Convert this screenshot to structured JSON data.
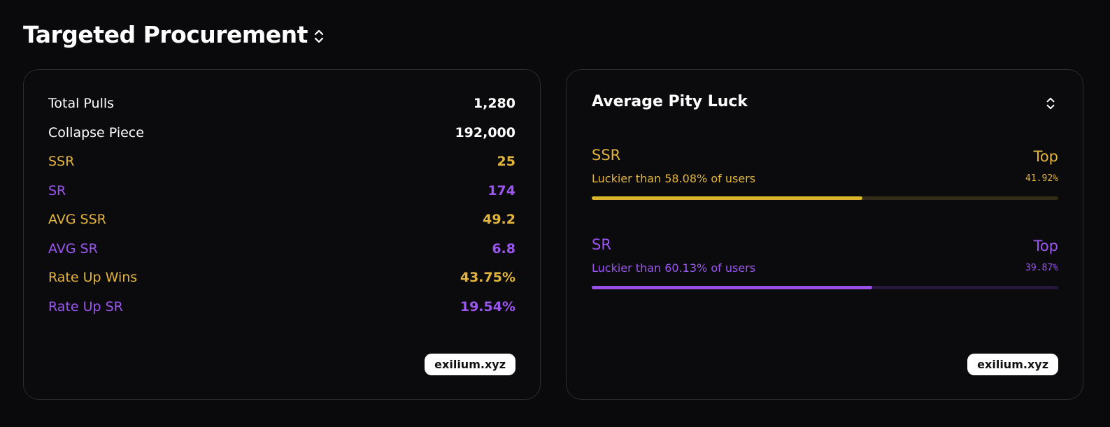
{
  "header": {
    "title": "Targeted Procurement"
  },
  "stats_card": {
    "rows": [
      {
        "label": "Total Pulls",
        "value": "1,280",
        "tone": "white"
      },
      {
        "label": "Collapse Piece",
        "value": "192,000",
        "tone": "white"
      },
      {
        "label": "SSR",
        "value": "25",
        "tone": "gold"
      },
      {
        "label": "SR",
        "value": "174",
        "tone": "purple"
      },
      {
        "label": "AVG SSR",
        "value": "49.2",
        "tone": "gold"
      },
      {
        "label": "AVG SR",
        "value": "6.8",
        "tone": "purple"
      },
      {
        "label": "Rate Up Wins",
        "value": "43.75%",
        "tone": "gold"
      },
      {
        "label": "Rate Up SR",
        "value": "19.54%",
        "tone": "purple"
      }
    ],
    "badge": "exilium.xyz"
  },
  "luck_card": {
    "title": "Average Pity Luck",
    "items": [
      {
        "rarity": "SSR",
        "top_label": "Top",
        "top_value": "41.92%",
        "text": "Luckier than 58.08% of users",
        "percent": 58.08,
        "color": "#d9b52b",
        "track": "#332c14",
        "tone": "gold"
      },
      {
        "rarity": "SR",
        "top_label": "Top",
        "top_value": "39.87%",
        "text": "Luckier than 60.13% of users",
        "percent": 60.13,
        "color": "#9a4fe6",
        "track": "#24173a",
        "tone": "purple"
      }
    ],
    "badge": "exilium.xyz"
  }
}
